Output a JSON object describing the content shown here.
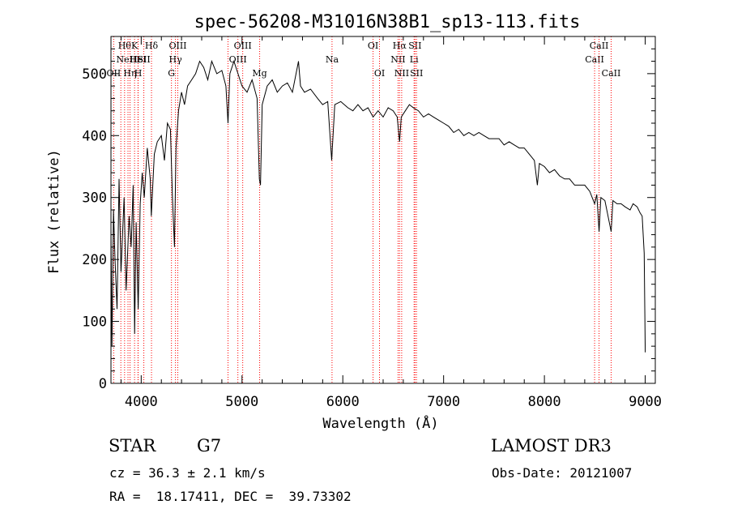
{
  "chart_data": {
    "type": "line",
    "title": "spec-56208-M31016N38B1_sp13-113.fits",
    "xlabel": "Wavelength (Å)",
    "ylabel": "Flux (relative)",
    "xlim": [
      3700,
      9100
    ],
    "ylim": [
      0,
      560
    ],
    "x_ticks": [
      4000,
      5000,
      6000,
      7000,
      8000,
      9000
    ],
    "y_ticks": [
      0,
      100,
      200,
      300,
      400,
      500
    ],
    "grid": false,
    "series": [
      {
        "points": [
          [
            3700,
            250
          ],
          [
            3710,
            60
          ],
          [
            3725,
            280
          ],
          [
            3740,
            200
          ],
          [
            3760,
            120
          ],
          [
            3780,
            330
          ],
          [
            3800,
            180
          ],
          [
            3830,
            300
          ],
          [
            3850,
            150
          ],
          [
            3880,
            270
          ],
          [
            3900,
            220
          ],
          [
            3920,
            320
          ],
          [
            3935,
            80
          ],
          [
            3950,
            260
          ],
          [
            3970,
            120
          ],
          [
            3990,
            290
          ],
          [
            4010,
            340
          ],
          [
            4030,
            300
          ],
          [
            4060,
            380
          ],
          [
            4090,
            330
          ],
          [
            4100,
            270
          ],
          [
            4130,
            370
          ],
          [
            4160,
            390
          ],
          [
            4200,
            400
          ],
          [
            4230,
            360
          ],
          [
            4260,
            420
          ],
          [
            4290,
            410
          ],
          [
            4310,
            300
          ],
          [
            4330,
            220
          ],
          [
            4345,
            380
          ],
          [
            4370,
            440
          ],
          [
            4400,
            470
          ],
          [
            4430,
            450
          ],
          [
            4460,
            480
          ],
          [
            4500,
            490
          ],
          [
            4540,
            500
          ],
          [
            4580,
            520
          ],
          [
            4620,
            510
          ],
          [
            4660,
            490
          ],
          [
            4700,
            520
          ],
          [
            4750,
            500
          ],
          [
            4800,
            505
          ],
          [
            4840,
            480
          ],
          [
            4861,
            420
          ],
          [
            4880,
            500
          ],
          [
            4920,
            520
          ],
          [
            4960,
            500
          ],
          [
            5000,
            480
          ],
          [
            5050,
            470
          ],
          [
            5100,
            490
          ],
          [
            5150,
            460
          ],
          [
            5172,
            330
          ],
          [
            5183,
            320
          ],
          [
            5200,
            450
          ],
          [
            5250,
            480
          ],
          [
            5300,
            490
          ],
          [
            5350,
            470
          ],
          [
            5400,
            480
          ],
          [
            5450,
            485
          ],
          [
            5500,
            470
          ],
          [
            5560,
            520
          ],
          [
            5580,
            480
          ],
          [
            5620,
            470
          ],
          [
            5680,
            475
          ],
          [
            5750,
            460
          ],
          [
            5800,
            450
          ],
          [
            5850,
            455
          ],
          [
            5890,
            360
          ],
          [
            5896,
            380
          ],
          [
            5920,
            450
          ],
          [
            5980,
            455
          ],
          [
            6050,
            445
          ],
          [
            6100,
            440
          ],
          [
            6150,
            450
          ],
          [
            6200,
            440
          ],
          [
            6250,
            445
          ],
          [
            6300,
            430
          ],
          [
            6350,
            440
          ],
          [
            6400,
            430
          ],
          [
            6450,
            445
          ],
          [
            6500,
            440
          ],
          [
            6540,
            430
          ],
          [
            6563,
            390
          ],
          [
            6580,
            430
          ],
          [
            6620,
            440
          ],
          [
            6660,
            450
          ],
          [
            6700,
            445
          ],
          [
            6750,
            440
          ],
          [
            6800,
            430
          ],
          [
            6850,
            435
          ],
          [
            6900,
            430
          ],
          [
            6950,
            425
          ],
          [
            7000,
            420
          ],
          [
            7050,
            415
          ],
          [
            7100,
            405
          ],
          [
            7150,
            410
          ],
          [
            7200,
            400
          ],
          [
            7250,
            405
          ],
          [
            7300,
            400
          ],
          [
            7350,
            405
          ],
          [
            7400,
            400
          ],
          [
            7450,
            395
          ],
          [
            7500,
            395
          ],
          [
            7550,
            395
          ],
          [
            7600,
            385
          ],
          [
            7650,
            390
          ],
          [
            7700,
            385
          ],
          [
            7750,
            380
          ],
          [
            7800,
            380
          ],
          [
            7850,
            370
          ],
          [
            7900,
            360
          ],
          [
            7930,
            320
          ],
          [
            7950,
            355
          ],
          [
            8000,
            350
          ],
          [
            8050,
            340
          ],
          [
            8100,
            345
          ],
          [
            8150,
            335
          ],
          [
            8200,
            330
          ],
          [
            8250,
            330
          ],
          [
            8300,
            320
          ],
          [
            8350,
            320
          ],
          [
            8400,
            320
          ],
          [
            8450,
            310
          ],
          [
            8498,
            290
          ],
          [
            8520,
            305
          ],
          [
            8542,
            245
          ],
          [
            8560,
            300
          ],
          [
            8600,
            295
          ],
          [
            8662,
            245
          ],
          [
            8680,
            295
          ],
          [
            8720,
            290
          ],
          [
            8760,
            290
          ],
          [
            8800,
            285
          ],
          [
            8850,
            280
          ],
          [
            8880,
            290
          ],
          [
            8920,
            285
          ],
          [
            8950,
            275
          ],
          [
            8970,
            270
          ],
          [
            8990,
            210
          ],
          [
            9000,
            50
          ]
        ]
      }
    ],
    "spectral_lines": [
      {
        "wavelength": 3727,
        "label": "OII",
        "row": 2
      },
      {
        "wavelength": 3798,
        "label": "",
        "row": 0
      },
      {
        "wavelength": 3835,
        "label": "Hθ",
        "row": 0
      },
      {
        "wavelength": 3869,
        "label": "NeIII",
        "row": 1
      },
      {
        "wavelength": 3889,
        "label": "Hη",
        "row": 2
      },
      {
        "wavelength": 3934,
        "label": "K",
        "row": 0
      },
      {
        "wavelength": 3968,
        "label": "HeI",
        "row": 1
      },
      {
        "wavelength": 3970,
        "label": "H",
        "row": 2
      },
      {
        "wavelength": 4026,
        "label": "SII",
        "row": 1
      },
      {
        "wavelength": 4102,
        "label": "Hδ",
        "row": 0
      },
      {
        "wavelength": 4300,
        "label": "G",
        "row": 2
      },
      {
        "wavelength": 4340,
        "label": "Hγ",
        "row": 1
      },
      {
        "wavelength": 4363,
        "label": "OIII",
        "row": 0
      },
      {
        "wavelength": 4861,
        "label": "",
        "row": 0
      },
      {
        "wavelength": 4959,
        "label": "OIII",
        "row": 1
      },
      {
        "wavelength": 5007,
        "label": "OIII",
        "row": 0
      },
      {
        "wavelength": 5175,
        "label": "Mg",
        "row": 2
      },
      {
        "wavelength": 5893,
        "label": "Na",
        "row": 1
      },
      {
        "wavelength": 6300,
        "label": "OI",
        "row": 0
      },
      {
        "wavelength": 6364,
        "label": "OI",
        "row": 2
      },
      {
        "wavelength": 6548,
        "label": "NII",
        "row": 1
      },
      {
        "wavelength": 6563,
        "label": "Hα",
        "row": 0
      },
      {
        "wavelength": 6584,
        "label": "NII",
        "row": 2
      },
      {
        "wavelength": 6707,
        "label": "Li",
        "row": 1
      },
      {
        "wavelength": 6716,
        "label": "SII",
        "row": 0
      },
      {
        "wavelength": 6731,
        "label": "SII",
        "row": 2
      },
      {
        "wavelength": 8498,
        "label": "CaII",
        "row": 1
      },
      {
        "wavelength": 8542,
        "label": "CaII",
        "row": 0
      },
      {
        "wavelength": 8662,
        "label": "CaII",
        "row": 2
      }
    ],
    "line_color": "#ff0000",
    "spectrum_color": "#000000"
  },
  "info": {
    "object_class": "STAR",
    "subclass": "G7",
    "survey": "LAMOST DR3",
    "cz": "cz = 36.3 ± 2.1 km/s",
    "obs_date": "Obs-Date: 20121007",
    "coords": "RA =  18.17411, DEC =  39.73302"
  }
}
